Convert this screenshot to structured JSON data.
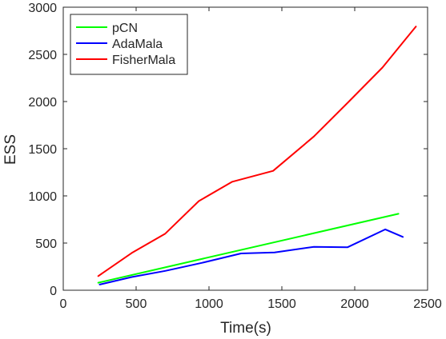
{
  "chart_data": {
    "type": "line",
    "title": "",
    "xlabel": "Time(s)",
    "ylabel": "ESS",
    "xlim": [
      0,
      2500
    ],
    "ylim": [
      0,
      3000
    ],
    "xticks": [
      0,
      500,
      1000,
      1500,
      2000,
      2500
    ],
    "yticks": [
      0,
      500,
      1000,
      1500,
      2000,
      2500,
      3000
    ],
    "grid": false,
    "legend_position": "top-left",
    "series": [
      {
        "name": "pCN",
        "color": "#00ff00",
        "x": [
          240,
          2300
        ],
        "y": [
          80,
          810
        ]
      },
      {
        "name": "AdaMala",
        "color": "#0000ff",
        "x": [
          250,
          470,
          700,
          950,
          1220,
          1450,
          1720,
          1950,
          2210,
          2330
        ],
        "y": [
          60,
          140,
          205,
          290,
          390,
          400,
          460,
          455,
          645,
          565
        ]
      },
      {
        "name": "FisherMala",
        "color": "#ff0000",
        "x": [
          240,
          470,
          700,
          930,
          1160,
          1440,
          1720,
          1960,
          2190,
          2420
        ],
        "y": [
          150,
          395,
          600,
          945,
          1150,
          1265,
          1630,
          2000,
          2360,
          2795
        ]
      }
    ]
  }
}
